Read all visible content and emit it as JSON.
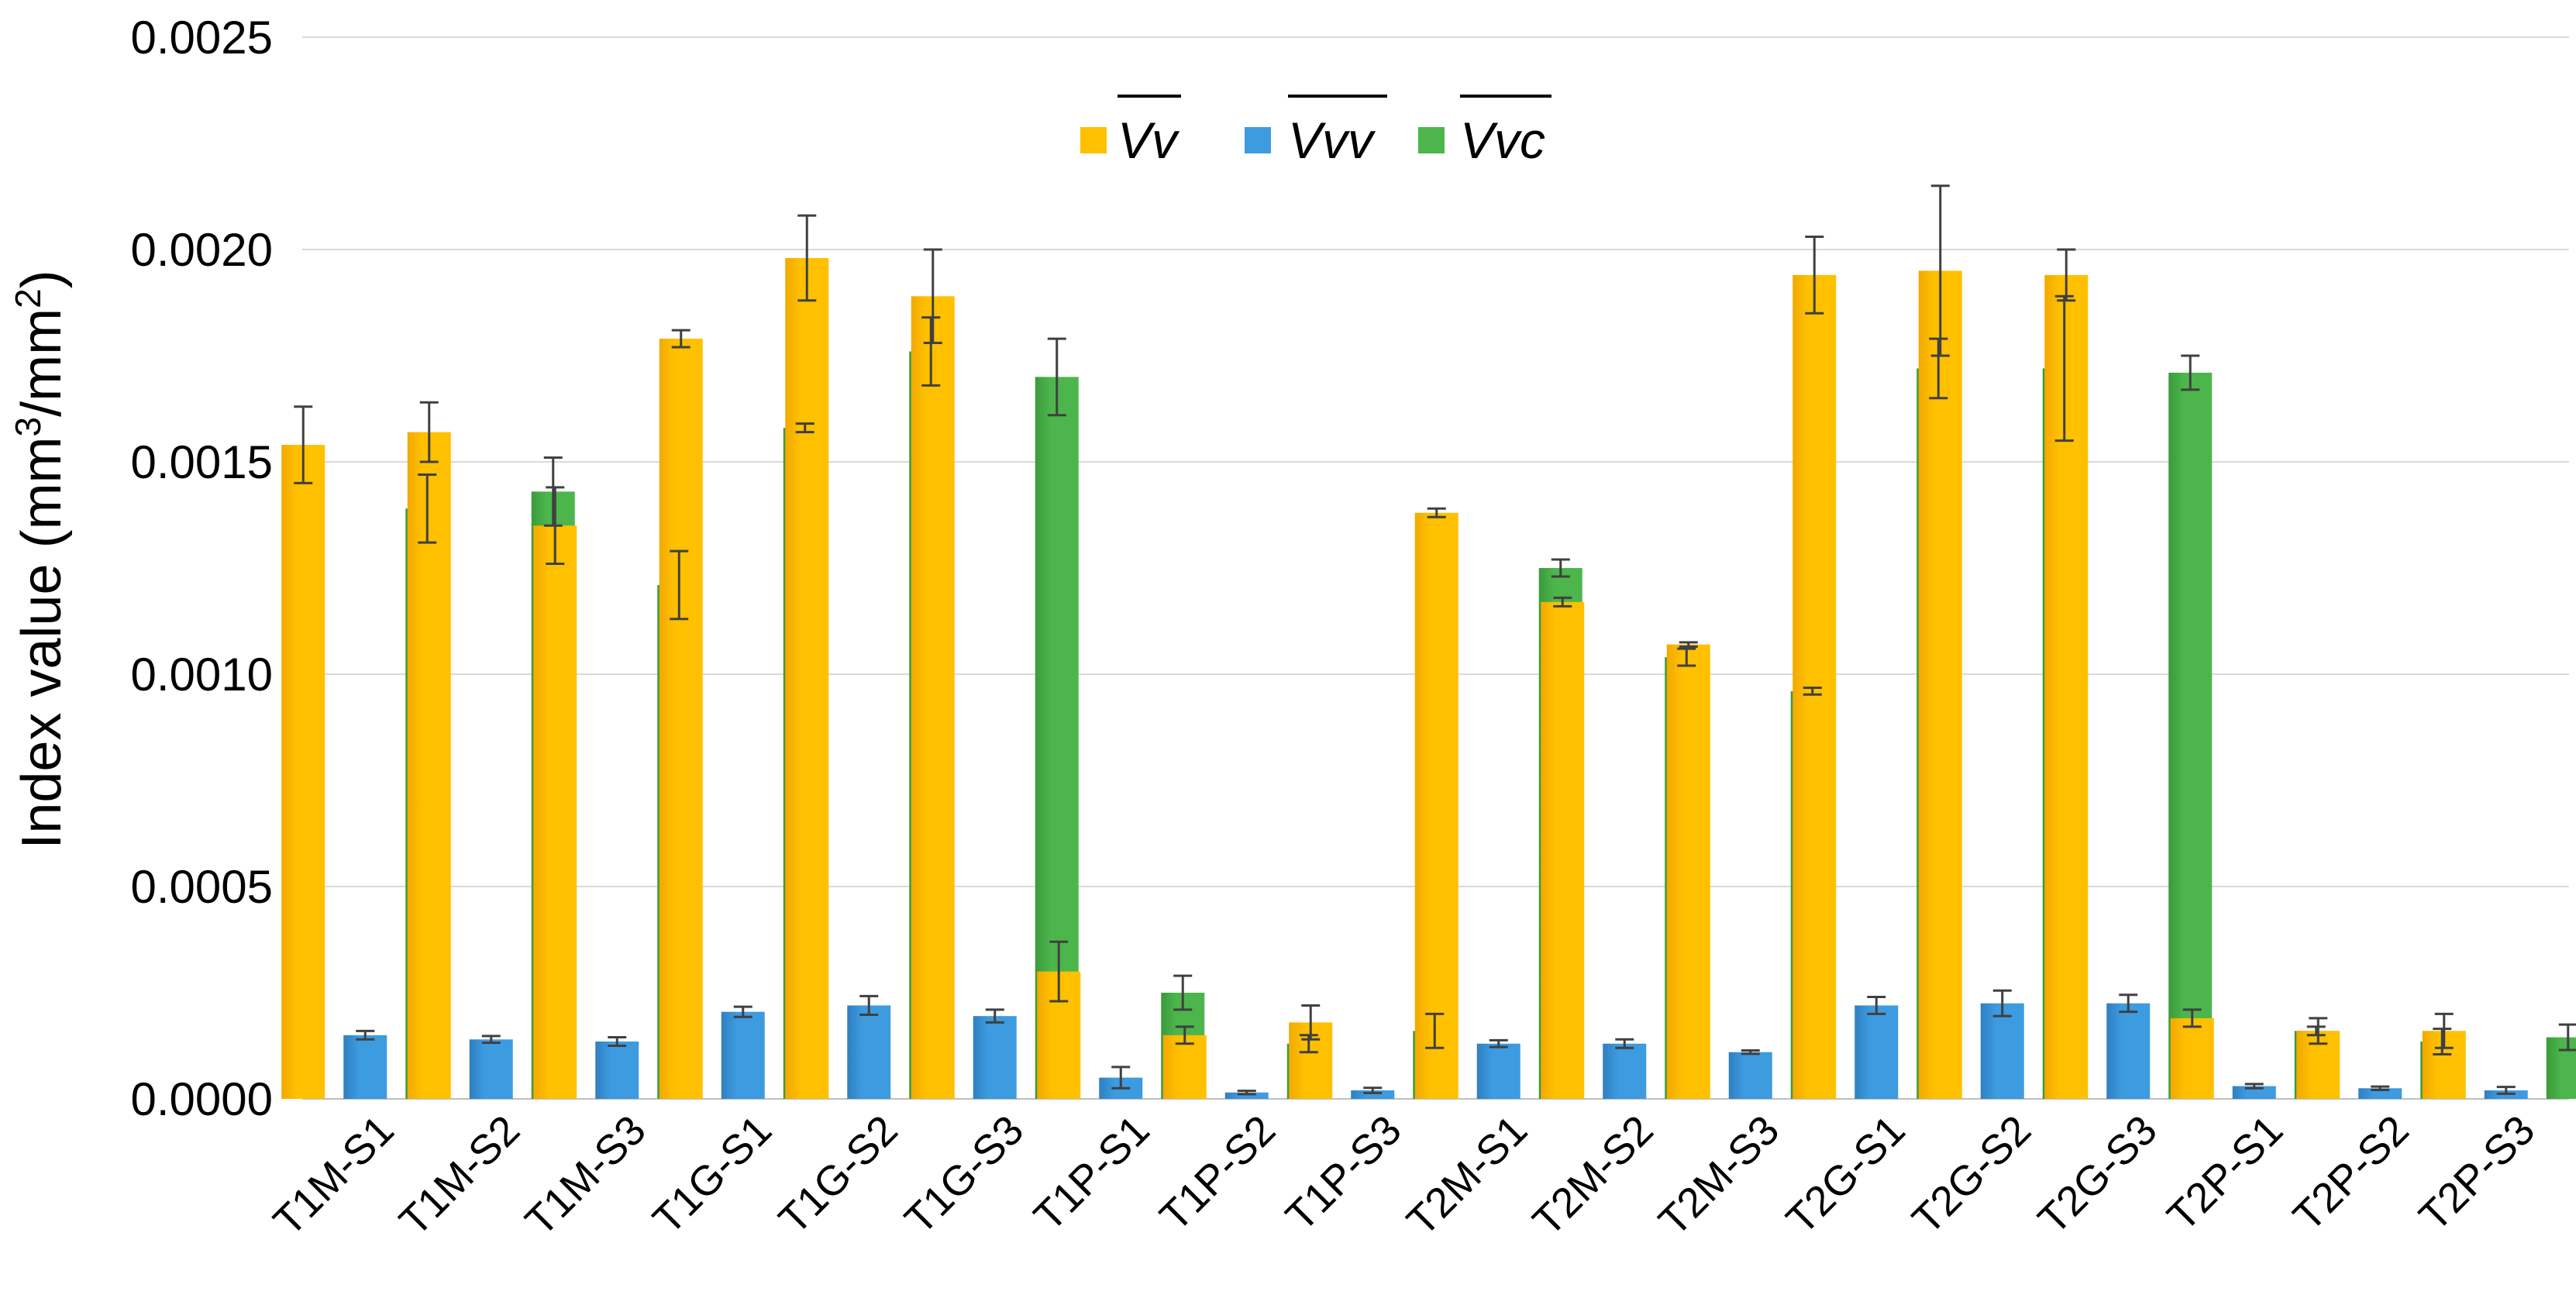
{
  "chart_data": {
    "type": "bar",
    "title": "",
    "xlabel": "",
    "ylabel": "Index value (mm³/mm²)",
    "ylabel_parts": {
      "prefix": "Index value (mm",
      "sup1": "3",
      "middle": "/mm",
      "sup2": "2",
      "suffix": ")"
    },
    "ylim": [
      0,
      0.0025
    ],
    "yticks": [
      "0.0000",
      "0.0005",
      "0.0010",
      "0.0015",
      "0.0020",
      "0.0025"
    ],
    "ytick_values": [
      0,
      0.0005,
      0.001,
      0.0015,
      0.002,
      0.0025
    ],
    "grid": true,
    "legend_position": "top-center",
    "categories": [
      "T1M-S1",
      "T1M-S2",
      "T1M-S3",
      "T1G-S1",
      "T1G-S2",
      "T1G-S3",
      "T1P-S1",
      "T1P-S2",
      "T1P-S3",
      "T2M-S1",
      "T2M-S2",
      "T2M-S3",
      "T2G-S1",
      "T2G-S2",
      "T2G-S3",
      "T2P-S1",
      "T2P-S2",
      "T2P-S3"
    ],
    "series": [
      {
        "name": "Vv",
        "color": "#FFC000",
        "color_dark": "#F2A900",
        "values": [
          0.00154,
          0.00157,
          0.00135,
          0.00179,
          0.00198,
          0.00189,
          0.0003,
          0.00015,
          0.00018,
          0.00138,
          0.00117,
          0.00107,
          0.00194,
          0.00195,
          0.00194,
          0.00019,
          0.00016,
          0.00016
        ],
        "errors": [
          9e-05,
          7e-05,
          9e-05,
          2e-05,
          0.0001,
          0.00011,
          7e-05,
          2e-05,
          4e-05,
          1e-05,
          1e-05,
          5e-06,
          9e-05,
          0.0002,
          6e-05,
          2e-05,
          3e-05,
          4e-05
        ]
      },
      {
        "name": "Vvv",
        "color": "#3D9BE0",
        "color_dark": "#2F7FC0",
        "values": [
          0.00015,
          0.00014,
          0.000135,
          0.000205,
          0.00022,
          0.000195,
          5e-05,
          1.5e-05,
          2e-05,
          0.00013,
          0.00013,
          0.00011,
          0.00022,
          0.000225,
          0.000225,
          3e-05,
          2.5e-05,
          2e-05
        ],
        "errors": [
          1e-05,
          8e-06,
          1e-05,
          1.2e-05,
          2.2e-05,
          1.5e-05,
          2.5e-05,
          4e-06,
          6e-06,
          8e-06,
          1e-05,
          4e-06,
          2e-05,
          3e-05,
          2e-05,
          5e-06,
          4e-06,
          8e-06
        ]
      },
      {
        "name": "Vvc",
        "color": "#4CB64C",
        "color_dark": "#3A9A3A",
        "values": [
          0.00139,
          0.00143,
          0.00121,
          0.00158,
          0.00176,
          0.0017,
          0.00025,
          0.00013,
          0.00016,
          0.00125,
          0.00104,
          0.00096,
          0.00172,
          0.00172,
          0.00171,
          0.00016,
          0.000135,
          0.000145
        ],
        "errors": [
          8e-05,
          8e-05,
          8e-05,
          1e-05,
          8e-05,
          9e-05,
          4e-05,
          2e-05,
          4e-05,
          2e-05,
          2e-05,
          8e-06,
          7e-05,
          0.00017,
          4e-05,
          1e-05,
          3e-05,
          3e-05
        ]
      }
    ]
  }
}
